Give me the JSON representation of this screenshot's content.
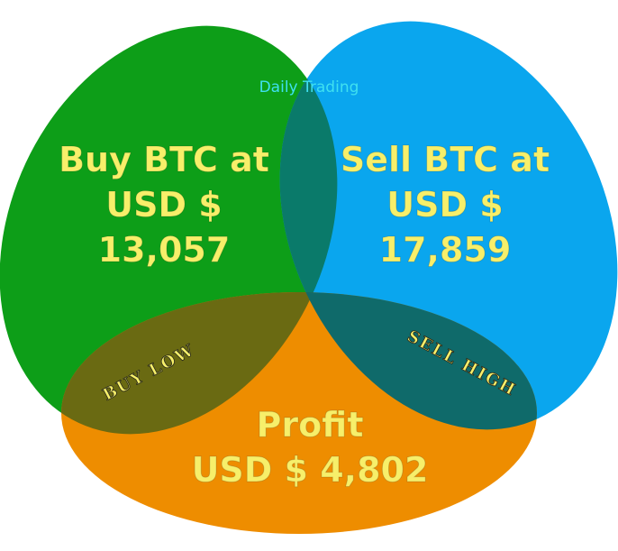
{
  "header": {
    "text": "Daily Trading"
  },
  "buy": {
    "line1": "Buy BTC at",
    "line2": "USD $",
    "line3": "13,057"
  },
  "sell": {
    "line1": "Sell BTC at",
    "line2": "USD $",
    "line3": "17,859"
  },
  "profit": {
    "line1": "Profit",
    "line2": "USD $ 4,802"
  },
  "stamps": {
    "buy_low": "BUY LOW",
    "sell_high": "SELL HIGH"
  },
  "colors": {
    "buy": "#0d9e18",
    "sell": "#0aa6ee",
    "profit": "#ee8d00",
    "overlap_buy_profit": "#6a6a12",
    "overlap_sell_profit": "#0f6a6a",
    "overlap_buy_sell": "#0a7a6a",
    "text": "#f7ef6a",
    "header_text": "#3fe0f0"
  }
}
